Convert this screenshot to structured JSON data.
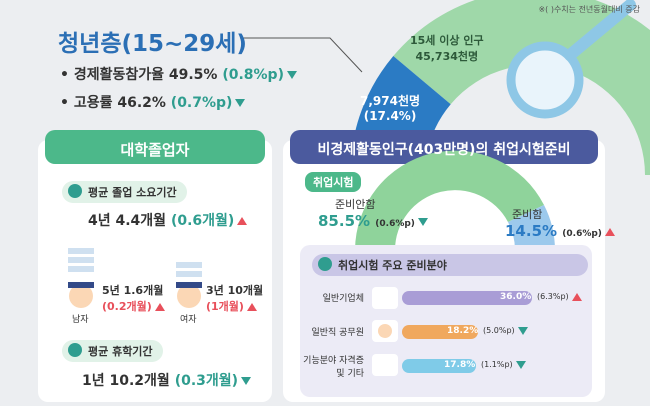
{
  "note": "※( )수치는 전년동월대비 증감",
  "youth": {
    "title": "청년층(15~29세)",
    "stats": [
      {
        "label": "경제활동참가율",
        "value": "49.5%",
        "change": "(0.8%p)"
      },
      {
        "label": "고용률",
        "value": "46.2%",
        "change": "(0.7%p)"
      }
    ],
    "population": {
      "label": "15세 이상 인구",
      "value": "45,734천명"
    },
    "youth_population": {
      "value": "7,974천명",
      "share": "(17.4%)"
    }
  },
  "graduates": {
    "title": "대학졸업자",
    "duration": {
      "label": "평균 졸업 소요기간",
      "value": "4년 4.4개월",
      "change": "(0.6개월)"
    },
    "male": {
      "value": "5년 1.6개월",
      "change": "(0.2개월)",
      "label": "남자"
    },
    "female": {
      "value": "3년 10개월",
      "change": "(1개월)",
      "label": "여자"
    },
    "leave": {
      "label": "평균 휴학기간",
      "value": "1년 10.2개월",
      "change": "(0.3개월)"
    }
  },
  "exam": {
    "title": "비경제활동인구(403만명)의 취업시험준비",
    "section": "취업시험",
    "not_preparing": {
      "label": "준비안함",
      "value": "85.5%",
      "change": "(0.6%p)"
    },
    "preparing": {
      "label": "준비함",
      "value": "14.5%",
      "change": "(0.6%p)"
    },
    "fields_title": "취업시험 주요 준비분야",
    "fields": [
      {
        "label": "일반기업체",
        "value": "36.0%",
        "change": "(6.3%p)"
      },
      {
        "label": "일반직 공무원",
        "value": "18.2%",
        "change": "(5.0%p)"
      },
      {
        "label": "기능분야 자격증 및 기타",
        "value": "17.8%",
        "change": "(1.1%p)"
      }
    ]
  }
}
